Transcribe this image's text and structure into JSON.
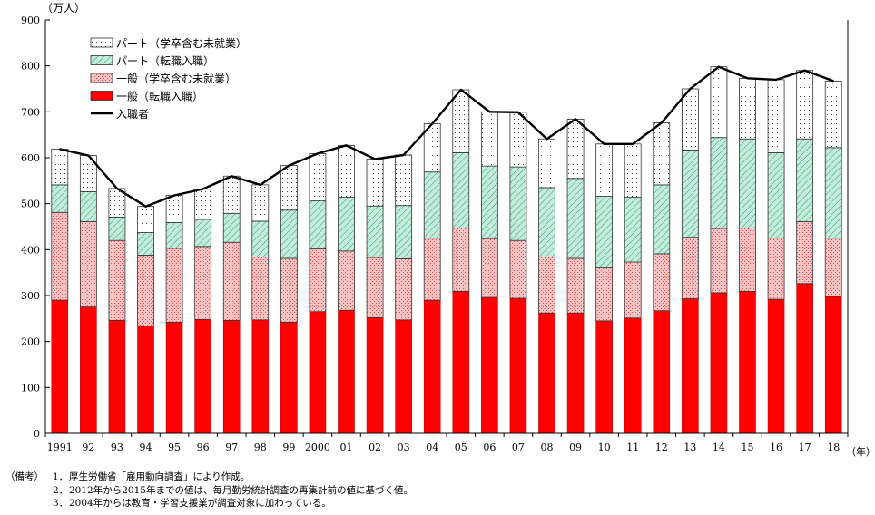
{
  "chart_data": {
    "type": "bar",
    "stacked": true,
    "ylabel": "（万人）",
    "xlabel": "（年）",
    "ylim": [
      0,
      900
    ],
    "yticks": [
      0,
      100,
      200,
      300,
      400,
      500,
      600,
      700,
      800,
      900
    ],
    "grid": false,
    "legend_position": "top-left",
    "categories": [
      "1991",
      "92",
      "93",
      "94",
      "95",
      "96",
      "97",
      "98",
      "99",
      "2000",
      "01",
      "02",
      "03",
      "04",
      "05",
      "06",
      "07",
      "08",
      "09",
      "10",
      "11",
      "12",
      "13",
      "14",
      "15",
      "16",
      "17",
      "18"
    ],
    "series": [
      {
        "name": "一般（転職入職）",
        "kind": "bar",
        "color": "#ff0000",
        "values": [
          290,
          275,
          246,
          234,
          242,
          248,
          246,
          247,
          242,
          265,
          268,
          252,
          247,
          290,
          309,
          296,
          294,
          262,
          262,
          245,
          251,
          267,
          293,
          306,
          309,
          292,
          326,
          298
        ]
      },
      {
        "name": "一般（学卒含む未就業）",
        "kind": "bar",
        "color": "#f4b8b8",
        "values": [
          191,
          186,
          174,
          154,
          161,
          159,
          170,
          137,
          139,
          137,
          129,
          131,
          133,
          135,
          138,
          128,
          126,
          122,
          119,
          115,
          122,
          124,
          134,
          140,
          138,
          133,
          135,
          127
        ]
      },
      {
        "name": "パート（転職入職）",
        "kind": "bar",
        "color": "#b8e6d4",
        "values": [
          60,
          65,
          51,
          49,
          56,
          59,
          63,
          78,
          105,
          104,
          117,
          112,
          116,
          144,
          164,
          158,
          160,
          151,
          174,
          156,
          141,
          150,
          190,
          198,
          194,
          186,
          180,
          197
        ]
      },
      {
        "name": "パート（学卒含む未就業）",
        "kind": "bar",
        "color": "#ffffff",
        "values": [
          78,
          79,
          62,
          57,
          59,
          66,
          81,
          79,
          97,
          103,
          113,
          102,
          110,
          105,
          137,
          118,
          119,
          106,
          129,
          114,
          116,
          135,
          133,
          154,
          132,
          159,
          149,
          145
        ]
      },
      {
        "name": "入職者",
        "kind": "line",
        "color": "#000000",
        "values": [
          619,
          605,
          533,
          494,
          518,
          532,
          560,
          541,
          583,
          609,
          627,
          597,
          606,
          674,
          748,
          700,
          699,
          641,
          684,
          630,
          630,
          676,
          750,
          798,
          773,
          770,
          790,
          767
        ]
      }
    ]
  },
  "notes": {
    "label": "（備考）",
    "items": [
      {
        "num": "1．",
        "text": "厚生労働省「雇用動向調査」により作成。"
      },
      {
        "num": "2．",
        "text": "2012年から2015年までの値は、毎月勤労統計調査の再集計前の値に基づく値。"
      },
      {
        "num": "3．",
        "text": "2004年からは教育・学習支援業が調査対象に加わっている。"
      }
    ]
  }
}
